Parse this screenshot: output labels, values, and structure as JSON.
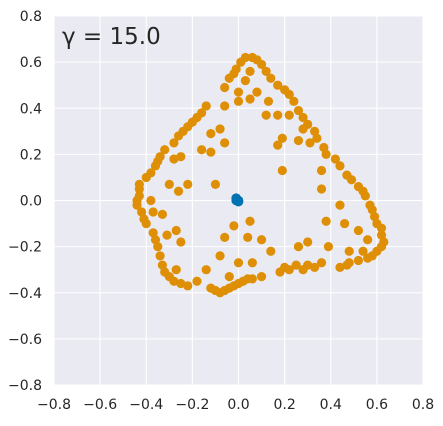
{
  "chart_data": {
    "type": "scatter",
    "title": "",
    "xlabel": "",
    "ylabel": "",
    "xlim": [
      -0.8,
      0.8
    ],
    "ylim": [
      -0.8,
      0.8
    ],
    "xticks": [
      -0.8,
      -0.6,
      -0.4,
      -0.2,
      0.0,
      0.2,
      0.4,
      0.6,
      0.8
    ],
    "yticks": [
      -0.8,
      -0.6,
      -0.4,
      -0.2,
      0.0,
      0.2,
      0.4,
      0.6,
      0.8
    ],
    "xtick_labels": [
      "−0.8",
      "−0.6",
      "−0.4",
      "−0.2",
      "0.0",
      "0.2",
      "0.4",
      "0.6",
      "0.8"
    ],
    "ytick_labels": [
      "−0.8",
      "−0.6",
      "−0.4",
      "−0.2",
      "0.0",
      "0.2",
      "0.4",
      "0.6",
      "0.8"
    ],
    "grid": true,
    "background_color": "#eaeaf2",
    "grid_color": "#ffffff",
    "annotation": "γ = 15.0",
    "series": [
      {
        "color": "#de8f05",
        "points": [
          [
            -0.44,
            0.0
          ],
          [
            -0.43,
            0.02
          ],
          [
            -0.44,
            -0.02
          ],
          [
            -0.43,
            0.05
          ],
          [
            -0.42,
            -0.05
          ],
          [
            -0.43,
            0.07
          ],
          [
            -0.41,
            -0.08
          ],
          [
            -0.4,
            0.1
          ],
          [
            -0.4,
            -0.1
          ],
          [
            -0.38,
            0.12
          ],
          [
            -0.37,
            -0.14
          ],
          [
            -0.36,
            0.15
          ],
          [
            -0.35,
            0.17
          ],
          [
            -0.36,
            -0.17
          ],
          [
            -0.34,
            0.19
          ],
          [
            -0.35,
            -0.2
          ],
          [
            -0.32,
            0.22
          ],
          [
            -0.34,
            -0.24
          ],
          [
            -0.28,
            0.25
          ],
          [
            -0.33,
            -0.28
          ],
          [
            -0.26,
            0.28
          ],
          [
            -0.32,
            -0.31
          ],
          [
            -0.24,
            0.3
          ],
          [
            -0.3,
            -0.33
          ],
          [
            -0.22,
            0.32
          ],
          [
            -0.28,
            -0.35
          ],
          [
            -0.2,
            0.34
          ],
          [
            -0.25,
            -0.36
          ],
          [
            -0.18,
            0.36
          ],
          [
            -0.22,
            -0.37
          ],
          [
            -0.16,
            0.38
          ],
          [
            -0.14,
            0.41
          ],
          [
            -0.12,
            -0.38
          ],
          [
            -0.1,
            -0.39
          ],
          [
            -0.08,
            -0.4
          ],
          [
            -0.06,
            -0.39
          ],
          [
            -0.04,
            -0.38
          ],
          [
            -0.02,
            -0.37
          ],
          [
            0.0,
            -0.36
          ],
          [
            0.02,
            -0.35
          ],
          [
            0.04,
            -0.34
          ],
          [
            0.06,
            -0.34
          ],
          [
            0.1,
            -0.33
          ],
          [
            0.18,
            -0.31
          ],
          [
            0.2,
            -0.29
          ],
          [
            0.22,
            -0.3
          ],
          [
            0.25,
            -0.28
          ],
          [
            0.28,
            -0.3
          ],
          [
            0.3,
            -0.28
          ],
          [
            0.33,
            -0.29
          ],
          [
            0.36,
            -0.27
          ],
          [
            0.44,
            -0.29
          ],
          [
            0.47,
            -0.28
          ],
          [
            0.48,
            -0.27
          ],
          [
            0.52,
            -0.26
          ],
          [
            0.56,
            -0.25
          ],
          [
            0.58,
            -0.24
          ],
          [
            0.6,
            -0.22
          ],
          [
            0.62,
            -0.2
          ],
          [
            0.63,
            -0.18
          ],
          [
            0.62,
            -0.15
          ],
          [
            0.62,
            -0.12
          ],
          [
            0.6,
            -0.1
          ],
          [
            0.59,
            -0.07
          ],
          [
            0.58,
            -0.04
          ],
          [
            0.57,
            -0.02
          ],
          [
            0.55,
            0.02
          ],
          [
            0.54,
            0.04
          ],
          [
            0.52,
            0.06
          ],
          [
            0.49,
            0.09
          ],
          [
            0.47,
            0.11
          ],
          [
            0.44,
            0.15
          ],
          [
            0.42,
            0.18
          ],
          [
            0.38,
            0.2
          ],
          [
            0.37,
            0.23
          ],
          [
            0.34,
            0.27
          ],
          [
            0.33,
            0.3
          ],
          [
            0.3,
            0.33
          ],
          [
            0.28,
            0.36
          ],
          [
            0.26,
            0.39
          ],
          [
            0.24,
            0.43
          ],
          [
            0.22,
            0.46
          ],
          [
            0.2,
            0.48
          ],
          [
            0.17,
            0.5
          ],
          [
            0.14,
            0.53
          ],
          [
            0.12,
            0.56
          ],
          [
            0.1,
            0.59
          ],
          [
            0.08,
            0.61
          ],
          [
            0.06,
            0.62
          ],
          [
            0.03,
            0.62
          ],
          [
            0.01,
            0.6
          ],
          [
            -0.01,
            0.57
          ],
          [
            -0.02,
            0.55
          ],
          [
            -0.04,
            0.53
          ],
          [
            -0.06,
            0.49
          ],
          [
            0.0,
            0.47
          ],
          [
            0.05,
            0.44
          ],
          [
            0.13,
            0.43
          ],
          [
            0.12,
            0.37
          ],
          [
            0.17,
            0.37
          ],
          [
            0.22,
            0.37
          ],
          [
            0.28,
            0.31
          ],
          [
            0.31,
            0.25
          ],
          [
            0.26,
            0.26
          ],
          [
            0.19,
            0.27
          ],
          [
            0.17,
            0.24
          ],
          [
            0.19,
            0.13
          ],
          [
            0.36,
            0.13
          ],
          [
            0.36,
            0.05
          ],
          [
            0.44,
            -0.02
          ],
          [
            0.38,
            -0.09
          ],
          [
            0.46,
            -0.1
          ],
          [
            0.52,
            -0.13
          ],
          [
            0.56,
            -0.17
          ],
          [
            0.54,
            -0.22
          ],
          [
            0.48,
            -0.22
          ],
          [
            0.39,
            -0.2
          ],
          [
            0.3,
            -0.18
          ],
          [
            0.26,
            -0.2
          ],
          [
            0.14,
            -0.22
          ],
          [
            0.1,
            -0.17
          ],
          [
            0.05,
            -0.09
          ],
          [
            0.04,
            -0.16
          ],
          [
            -0.02,
            -0.11
          ],
          [
            -0.06,
            -0.16
          ],
          [
            -0.08,
            -0.24
          ],
          [
            0.0,
            -0.27
          ],
          [
            0.06,
            -0.27
          ],
          [
            -0.04,
            -0.33
          ],
          [
            -0.14,
            -0.3
          ],
          [
            -0.18,
            -0.35
          ],
          [
            -0.27,
            -0.3
          ],
          [
            -0.25,
            -0.18
          ],
          [
            -0.27,
            -0.13
          ],
          [
            -0.31,
            -0.15
          ],
          [
            -0.33,
            -0.06
          ],
          [
            -0.37,
            -0.05
          ],
          [
            -0.38,
            0.0
          ],
          [
            -0.3,
            0.07
          ],
          [
            -0.26,
            0.04
          ],
          [
            -0.22,
            0.07
          ],
          [
            -0.25,
            0.19
          ],
          [
            -0.28,
            0.18
          ],
          [
            -0.16,
            0.22
          ],
          [
            -0.12,
            0.21
          ],
          [
            -0.12,
            0.29
          ],
          [
            -0.06,
            0.25
          ],
          [
            -0.1,
            0.07
          ],
          [
            -0.08,
            0.31
          ],
          [
            -0.06,
            0.41
          ],
          [
            0.0,
            0.43
          ],
          [
            0.03,
            0.52
          ],
          [
            0.05,
            0.56
          ],
          [
            0.08,
            0.47
          ]
        ]
      },
      {
        "color": "#0173b2",
        "points": [
          [
            -0.01,
            0.0
          ],
          [
            0.0,
            0.0
          ],
          [
            -0.01,
            0.01
          ],
          [
            0.0,
            -0.005
          ]
        ]
      }
    ]
  }
}
